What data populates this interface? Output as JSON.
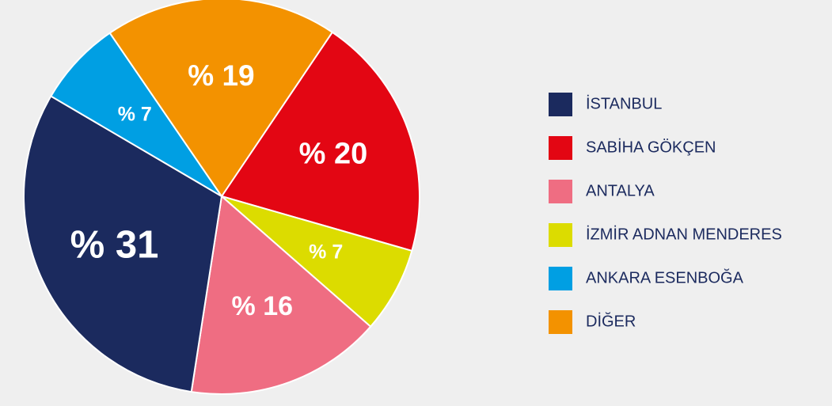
{
  "chart_data": {
    "type": "pie",
    "categories": [
      "İSTANBUL",
      "SABİHA GÖKÇEN",
      "ANTALYA",
      "İZMİR ADNAN MENDERES",
      "ANKARA ESENBOĞA",
      "DİĞER"
    ],
    "values": [
      31,
      20,
      16,
      7,
      7,
      19
    ],
    "value_labels": [
      "% 31",
      "% 20",
      "% 16",
      "% 7",
      "% 7",
      "% 19"
    ],
    "colors": [
      "#1b2a5e",
      "#e30613",
      "#ef6d82",
      "#dcdc00",
      "#009fe3",
      "#f39200"
    ],
    "legend": "right"
  }
}
